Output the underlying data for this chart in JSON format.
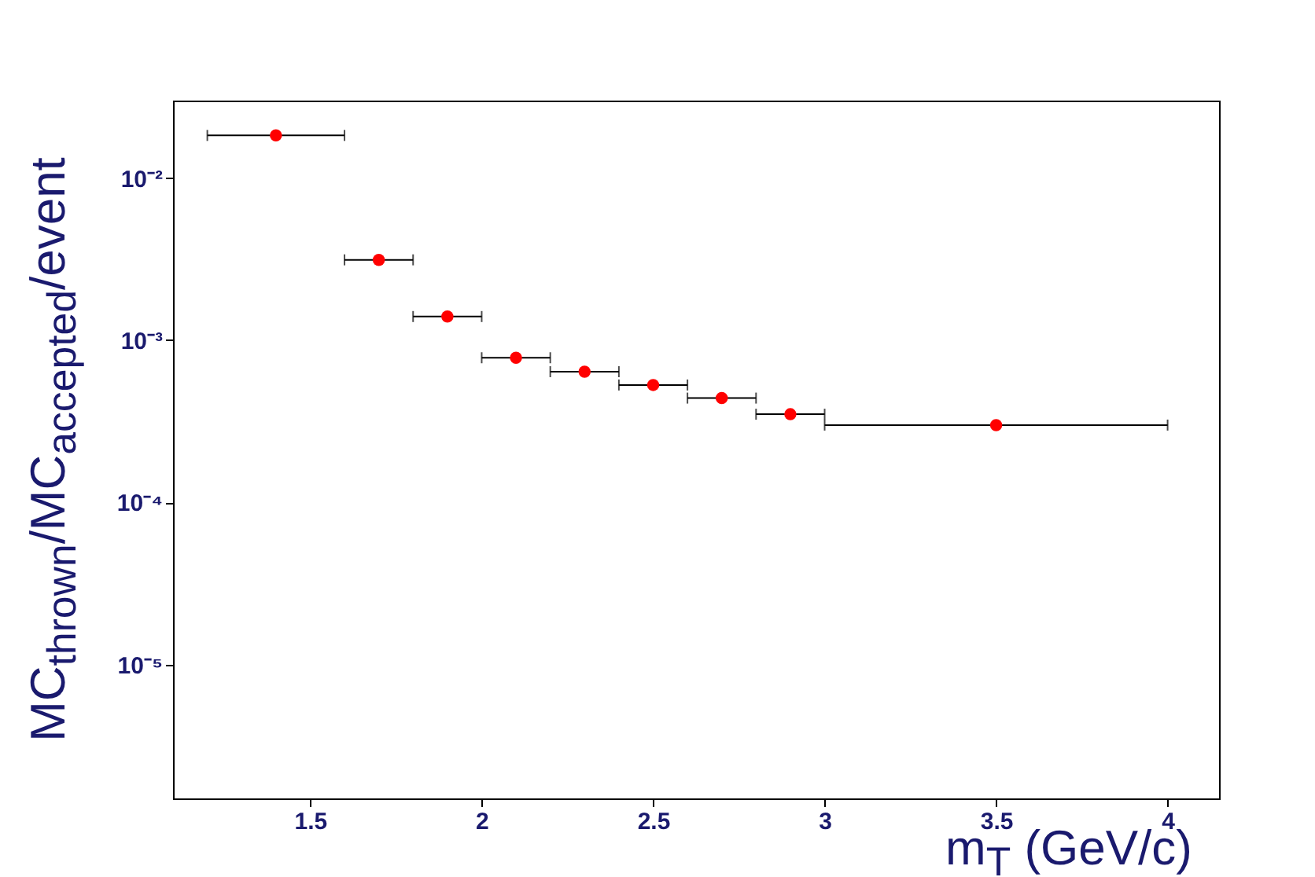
{
  "chart_data": {
    "type": "scatter",
    "xlabel": "m$_{T}$ (GeV/c)",
    "ylabel": "MC$_{thrown}$/MC$_{accepted}$/event",
    "x": [
      1.4,
      1.7,
      1.9,
      2.1,
      2.3,
      2.5,
      2.7,
      2.9,
      3.5
    ],
    "series": [
      {
        "color": "#ff0000",
        "values": [
          0.0183,
          0.00313,
          0.0014,
          0.00078,
          0.00064,
          0.00053,
          0.00044,
          0.00035,
          0.0003
        ],
        "xerrors": [
          0.2,
          0.1,
          0.1,
          0.1,
          0.1,
          0.1,
          0.1,
          0.1,
          0.5
        ]
      }
    ],
    "log": "y",
    "xlim": [
      1.1,
      4.15
    ],
    "xticks": [
      1.5,
      2,
      2.5,
      3,
      3.5,
      4
    ],
    "ylim": [
      1.5e-06,
      0.03
    ],
    "yticks": [
      {
        "value": 0.01,
        "label": "10⁻²"
      },
      {
        "value": 0.001,
        "label": "10⁻³"
      },
      {
        "value": 0.0001,
        "label": "10⁻⁴"
      },
      {
        "value": 1e-05,
        "label": "10⁻⁵"
      }
    ],
    "grid": false,
    "marker": "circle"
  }
}
